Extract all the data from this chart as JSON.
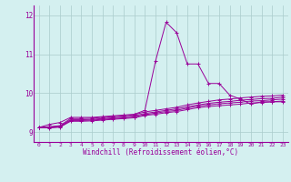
{
  "xlabel": "Windchill (Refroidissement éolien,°C)",
  "bg_color": "#d4f0f0",
  "line_color": "#990099",
  "grid_color": "#aacccc",
  "xlim": [
    -0.5,
    23.5
  ],
  "ylim": [
    8.75,
    12.25
  ],
  "xticks": [
    0,
    1,
    2,
    3,
    4,
    5,
    6,
    7,
    8,
    9,
    10,
    11,
    12,
    13,
    14,
    15,
    16,
    17,
    18,
    19,
    20,
    21,
    22,
    23
  ],
  "yticks": [
    9,
    10,
    11,
    12
  ],
  "series": [
    [
      9.12,
      9.2,
      9.25,
      9.38,
      9.38,
      9.38,
      9.4,
      9.42,
      9.44,
      9.46,
      9.56,
      10.82,
      11.82,
      11.55,
      10.75,
      10.75,
      10.25,
      10.25,
      9.95,
      9.85,
      9.72,
      9.78,
      9.78,
      9.78
    ],
    [
      9.12,
      9.14,
      9.17,
      9.35,
      9.35,
      9.36,
      9.38,
      9.4,
      9.42,
      9.45,
      9.52,
      9.56,
      9.6,
      9.64,
      9.7,
      9.75,
      9.79,
      9.83,
      9.85,
      9.88,
      9.9,
      9.92,
      9.93,
      9.95
    ],
    [
      9.12,
      9.13,
      9.15,
      9.32,
      9.32,
      9.33,
      9.35,
      9.37,
      9.39,
      9.42,
      9.48,
      9.52,
      9.56,
      9.6,
      9.65,
      9.7,
      9.74,
      9.77,
      9.79,
      9.82,
      9.84,
      9.86,
      9.87,
      9.9
    ],
    [
      9.12,
      9.12,
      9.14,
      9.3,
      9.3,
      9.31,
      9.33,
      9.35,
      9.37,
      9.39,
      9.45,
      9.49,
      9.53,
      9.56,
      9.62,
      9.67,
      9.7,
      9.73,
      9.75,
      9.77,
      9.8,
      9.81,
      9.83,
      9.85
    ],
    [
      9.12,
      9.11,
      9.13,
      9.28,
      9.28,
      9.29,
      9.31,
      9.33,
      9.35,
      9.37,
      9.43,
      9.46,
      9.5,
      9.53,
      9.58,
      9.63,
      9.66,
      9.68,
      9.7,
      9.72,
      9.75,
      9.76,
      9.78,
      9.8
    ]
  ]
}
